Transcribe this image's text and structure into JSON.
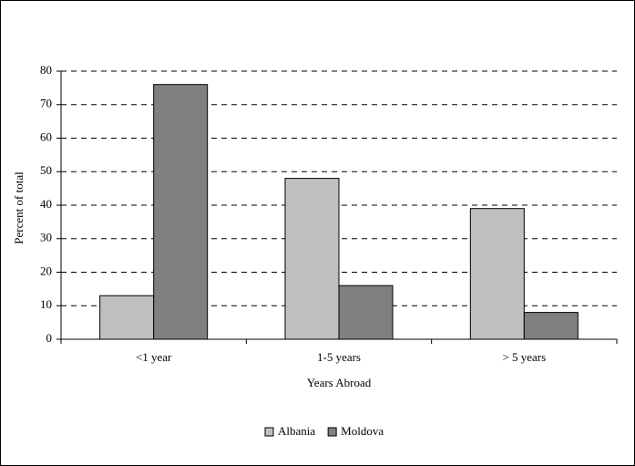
{
  "chart_data": {
    "type": "bar",
    "x_label": "Years Abroad",
    "y_label": "Percent of total",
    "categories": [
      "<1 year",
      "1-5 years",
      "> 5 years"
    ],
    "series": [
      {
        "name": "Albania",
        "color": "#c0c0c0",
        "values": [
          13,
          48,
          39
        ]
      },
      {
        "name": "Moldova",
        "color": "#808080",
        "values": [
          76,
          16,
          8
        ]
      }
    ],
    "ylim": [
      0,
      80
    ],
    "yticks": [
      0,
      10,
      20,
      30,
      40,
      50,
      60,
      70,
      80
    ],
    "grid": true,
    "legend": "bottom"
  }
}
